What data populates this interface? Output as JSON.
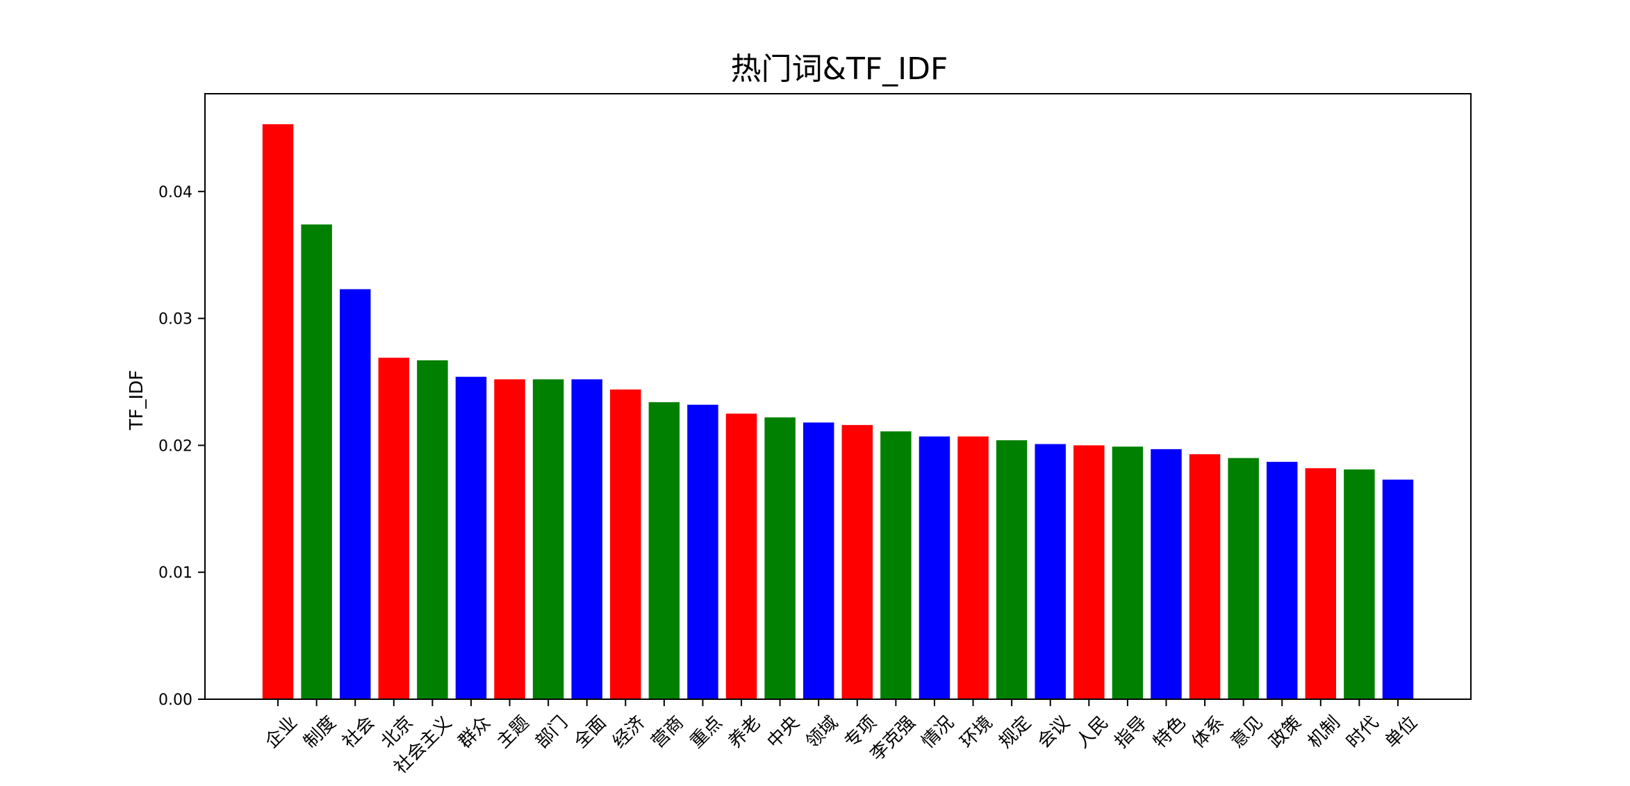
{
  "chart_data": {
    "type": "bar",
    "title": "热门词&TF_IDF",
    "xlabel": "",
    "ylabel": "TF_IDF",
    "ylim": [
      0,
      0.0477
    ],
    "yticks": [
      0.0,
      0.01,
      0.02,
      0.03,
      0.04
    ],
    "ytick_labels": [
      "0.00",
      "0.01",
      "0.02",
      "0.03",
      "0.04"
    ],
    "grid": false,
    "bar_colors": [
      "#ff0000",
      "#008000",
      "#0000ff"
    ],
    "categories": [
      "企业",
      "制度",
      "社会",
      "北京",
      "社会主义",
      "群众",
      "主题",
      "部门",
      "全面",
      "经济",
      "营商",
      "重点",
      "养老",
      "中央",
      "领域",
      "专项",
      "李克强",
      "情况",
      "环境",
      "规定",
      "会议",
      "人民",
      "指导",
      "特色",
      "体系",
      "意见",
      "政策",
      "机制",
      "时代",
      "单位"
    ],
    "values": [
      0.0453,
      0.0374,
      0.0323,
      0.0269,
      0.0267,
      0.0254,
      0.0252,
      0.0252,
      0.0252,
      0.0244,
      0.0234,
      0.0232,
      0.0225,
      0.0222,
      0.0218,
      0.0216,
      0.0211,
      0.0207,
      0.0207,
      0.0204,
      0.0201,
      0.02,
      0.0199,
      0.0197,
      0.0193,
      0.019,
      0.0187,
      0.0182,
      0.0181,
      0.0173
    ]
  }
}
